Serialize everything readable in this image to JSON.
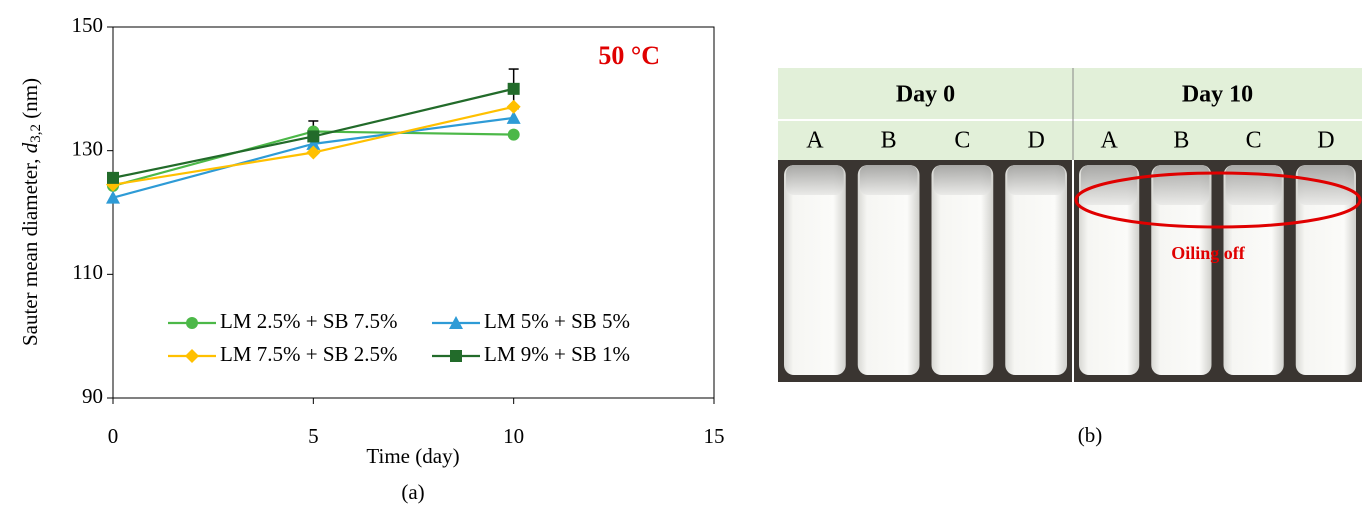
{
  "chart_data": {
    "type": "line",
    "annotation": "50 °C",
    "ylabel": {
      "text": "Sauter mean diameter, ",
      "var": "d",
      "sub": "3,2",
      "unit": " (nm)"
    },
    "xlabel": "Time (day)",
    "caption": "(a)",
    "x": [
      0,
      5,
      10
    ],
    "xlim": [
      0,
      15
    ],
    "xticks": [
      0,
      5,
      10,
      15
    ],
    "ylim": [
      90,
      150
    ],
    "yticks": [
      90,
      110,
      130,
      150
    ],
    "legend": "lower center",
    "series": [
      {
        "name": "LM 2.5% + SB 7.5%",
        "color": "#4cb848",
        "marker": "circle",
        "values": [
          124.3,
          133.1,
          132.6
        ]
      },
      {
        "name": "LM 5% + SB 5%",
        "color": "#2e9bd6",
        "marker": "triangle",
        "values": [
          122.4,
          131.1,
          135.3
        ]
      },
      {
        "name": "LM 7.5% + SB 2.5%",
        "color": "#ffc000",
        "marker": "diamond",
        "values": [
          124.5,
          129.7,
          137.1
        ]
      },
      {
        "name": "LM 9% + SB 1%",
        "color": "#226b2a",
        "marker": "square",
        "values": [
          125.6,
          132.3,
          140.0
        ],
        "errors": [
          0.6,
          2.5,
          3.2
        ]
      }
    ]
  },
  "photo": {
    "caption": "(b)",
    "annotation": "Oiling off",
    "columns": [
      {
        "header": "Day 0",
        "samples": [
          "A",
          "B",
          "C",
          "D"
        ]
      },
      {
        "header": "Day 10",
        "samples": [
          "A",
          "B",
          "C",
          "D"
        ]
      }
    ]
  }
}
